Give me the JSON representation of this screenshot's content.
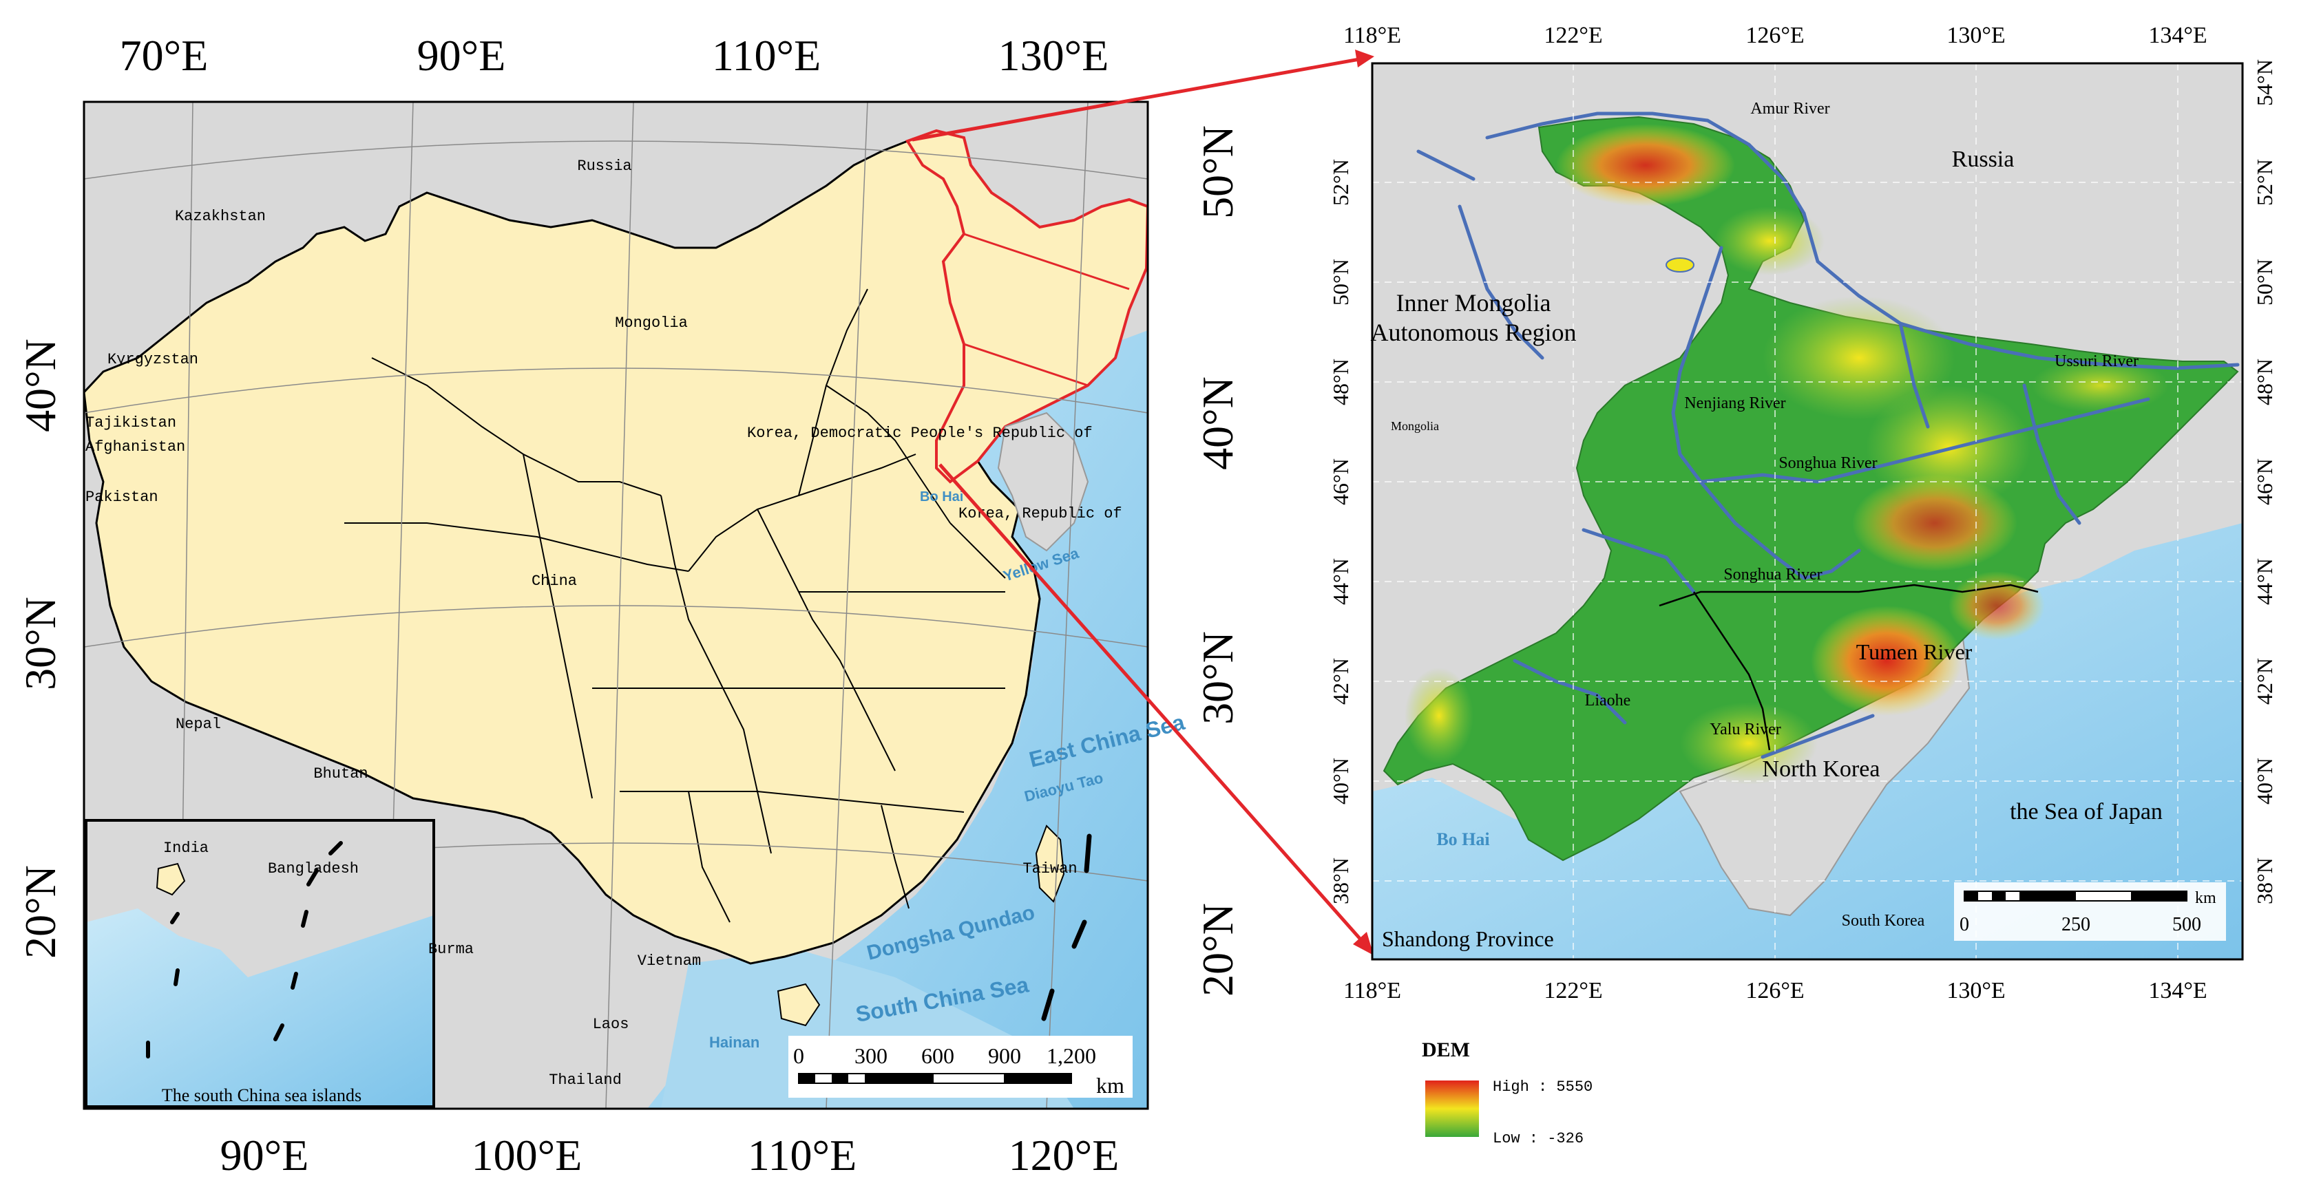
{
  "left_map": {
    "top_lon_labels": [
      "70°E",
      "90°E",
      "110°E",
      "130°E"
    ],
    "bottom_lon_labels": [
      "90°E",
      "100°E",
      "110°E",
      "120°E"
    ],
    "left_lat_labels": [
      "40°N",
      "30°N",
      "20°N"
    ],
    "right_lat_labels": [
      "50°N",
      "40°N",
      "30°N",
      "20°N"
    ],
    "country_labels": [
      "Russia",
      "Kazakhstan",
      "Mongolia",
      "Kyrgyzstan",
      "Tajikistan",
      "Afghanistan",
      "Pakistan",
      "China",
      "Nepal",
      "Bhutan",
      "Vietnam",
      "Laos",
      "Thailand",
      "Burma",
      "Bangladesh",
      "India",
      "Taiwan",
      "Korea, Democratic People's Republic of",
      "Korea, Republic of"
    ],
    "sea_labels": [
      "Bo Hai",
      "Yellow Sea",
      "East China Sea",
      "Diaoyu Tao",
      "Dongsha Qundao",
      "South China Sea",
      "Hainan"
    ],
    "inset_caption": "The south China sea islands",
    "scalebar": {
      "ticks": [
        "0",
        "300",
        "600",
        "900",
        "1,200"
      ],
      "unit": "km"
    }
  },
  "right_map": {
    "top_lon_labels": [
      "118°E",
      "122°E",
      "126°E",
      "130°E",
      "134°E"
    ],
    "bottom_lon_labels": [
      "118°E",
      "122°E",
      "126°E",
      "130°E",
      "134°E"
    ],
    "lat_labels": [
      "54°N",
      "52°N",
      "50°N",
      "48°N",
      "46°N",
      "44°N",
      "42°N",
      "40°N",
      "38°N"
    ],
    "region_labels": [
      "Russia",
      "Inner Mongolia",
      "Autonomous Region",
      "North Korea",
      "the Sea of Japan",
      "Shandong Province",
      "South Korea",
      "Mongolia",
      "Bo Hai"
    ],
    "river_labels": [
      "Amur River",
      "Ussuri River",
      "Nenjiang River",
      "Songhua River",
      "Songhua River",
      "Tumen River",
      "Liaohe",
      "Yalu River"
    ],
    "scalebar": {
      "ticks": [
        "0",
        "250",
        "500"
      ],
      "unit": "km"
    }
  },
  "legend": {
    "title": "DEM",
    "high_label": "High : 5550",
    "low_label": "Low : -326"
  },
  "colors": {
    "land_gray": "#d9d9d9",
    "china_fill": "#fdf0bd",
    "sea_blue": "#a9d8f0",
    "highlight_red": "#e3262b",
    "dem_high": "#e2231a",
    "dem_mid": "#f2e51f",
    "dem_low": "#3aa83a",
    "river_blue": "#4a6fb8"
  }
}
